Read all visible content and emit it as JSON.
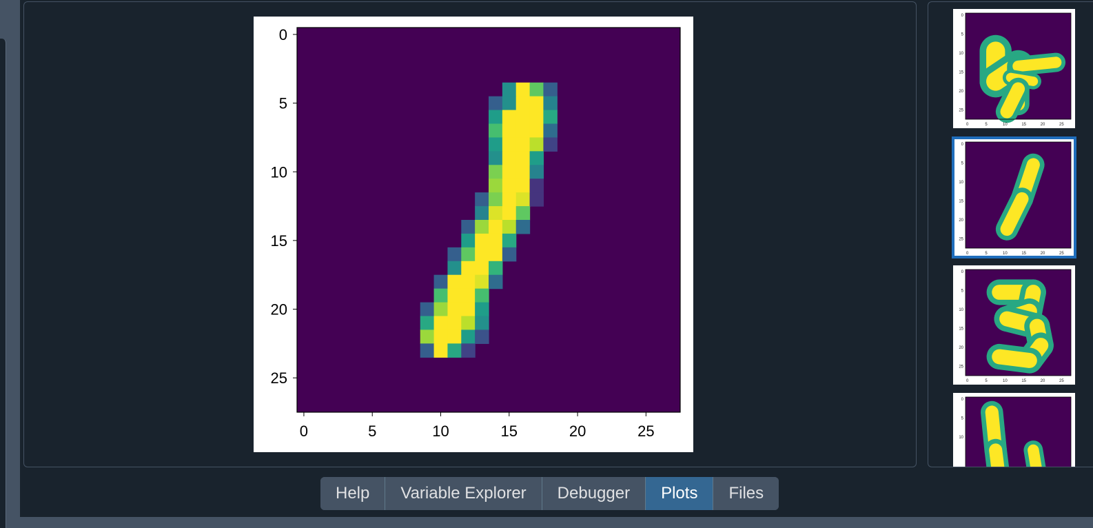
{
  "tabs": [
    {
      "label": "Help",
      "active": false
    },
    {
      "label": "Variable Explorer",
      "active": false
    },
    {
      "label": "Debugger",
      "active": false
    },
    {
      "label": "Plots",
      "active": true
    },
    {
      "label": "Files",
      "active": false
    }
  ],
  "colors": {
    "background": "#19232d",
    "panel_border": "#455364",
    "tab_active": "#346792",
    "thumb_selected": "#1f6dbb",
    "viridis_low": "#440154",
    "viridis_high": "#fde725"
  },
  "chart_data": {
    "type": "heatmap",
    "colormap": "viridis",
    "x_ticks": [
      0,
      5,
      10,
      15,
      20,
      25
    ],
    "y_ticks": [
      0,
      5,
      10,
      15,
      20,
      25
    ],
    "xlim": [
      -0.5,
      27.5
    ],
    "ylim": [
      27.5,
      -0.5
    ],
    "shape": [
      28,
      28
    ],
    "pixels": [
      [
        4,
        15,
        0.5
      ],
      [
        4,
        16,
        1.0
      ],
      [
        4,
        17,
        0.75
      ],
      [
        4,
        18,
        0.3
      ],
      [
        5,
        14,
        0.3
      ],
      [
        5,
        15,
        0.5
      ],
      [
        5,
        16,
        1.0
      ],
      [
        5,
        17,
        1.0
      ],
      [
        5,
        18,
        0.45
      ],
      [
        6,
        14,
        0.55
      ],
      [
        6,
        15,
        1.0
      ],
      [
        6,
        16,
        1.0
      ],
      [
        6,
        17,
        1.0
      ],
      [
        6,
        18,
        0.6
      ],
      [
        7,
        14,
        0.7
      ],
      [
        7,
        15,
        1.0
      ],
      [
        7,
        16,
        1.0
      ],
      [
        7,
        17,
        1.0
      ],
      [
        7,
        18,
        0.35
      ],
      [
        8,
        14,
        0.55
      ],
      [
        8,
        15,
        1.0
      ],
      [
        8,
        16,
        1.0
      ],
      [
        8,
        17,
        0.9
      ],
      [
        8,
        18,
        0.2
      ],
      [
        9,
        14,
        0.5
      ],
      [
        9,
        15,
        1.0
      ],
      [
        9,
        16,
        1.0
      ],
      [
        9,
        17,
        0.55
      ],
      [
        10,
        14,
        0.8
      ],
      [
        10,
        15,
        1.0
      ],
      [
        10,
        16,
        1.0
      ],
      [
        10,
        17,
        0.45
      ],
      [
        11,
        14,
        0.85
      ],
      [
        11,
        15,
        1.0
      ],
      [
        11,
        16,
        1.0
      ],
      [
        11,
        17,
        0.15
      ],
      [
        12,
        13,
        0.3
      ],
      [
        12,
        14,
        0.8
      ],
      [
        12,
        15,
        1.0
      ],
      [
        12,
        16,
        0.95
      ],
      [
        12,
        17,
        0.15
      ],
      [
        13,
        13,
        0.45
      ],
      [
        13,
        14,
        0.95
      ],
      [
        13,
        15,
        1.0
      ],
      [
        13,
        16,
        0.75
      ],
      [
        14,
        12,
        0.3
      ],
      [
        14,
        13,
        0.85
      ],
      [
        14,
        14,
        1.0
      ],
      [
        14,
        15,
        0.9
      ],
      [
        14,
        16,
        0.35
      ],
      [
        15,
        12,
        0.55
      ],
      [
        15,
        13,
        1.0
      ],
      [
        15,
        14,
        1.0
      ],
      [
        15,
        15,
        0.6
      ],
      [
        16,
        11,
        0.3
      ],
      [
        16,
        12,
        0.75
      ],
      [
        16,
        13,
        1.0
      ],
      [
        16,
        14,
        1.0
      ],
      [
        16,
        15,
        0.3
      ],
      [
        17,
        11,
        0.5
      ],
      [
        17,
        12,
        1.0
      ],
      [
        17,
        13,
        1.0
      ],
      [
        17,
        14,
        0.65
      ],
      [
        18,
        10,
        0.3
      ],
      [
        18,
        11,
        1.0
      ],
      [
        18,
        12,
        1.0
      ],
      [
        18,
        13,
        0.95
      ],
      [
        18,
        14,
        0.35
      ],
      [
        19,
        10,
        0.7
      ],
      [
        19,
        11,
        1.0
      ],
      [
        19,
        12,
        1.0
      ],
      [
        19,
        13,
        0.7
      ],
      [
        20,
        9,
        0.3
      ],
      [
        20,
        10,
        0.85
      ],
      [
        20,
        11,
        1.0
      ],
      [
        20,
        12,
        1.0
      ],
      [
        20,
        13,
        0.55
      ],
      [
        21,
        9,
        0.6
      ],
      [
        21,
        10,
        1.0
      ],
      [
        21,
        11,
        1.0
      ],
      [
        21,
        12,
        0.9
      ],
      [
        21,
        13,
        0.5
      ],
      [
        22,
        9,
        0.85
      ],
      [
        22,
        10,
        1.0
      ],
      [
        22,
        11,
        1.0
      ],
      [
        22,
        12,
        0.55
      ],
      [
        22,
        13,
        0.25
      ],
      [
        23,
        9,
        0.3
      ],
      [
        23,
        10,
        1.0
      ],
      [
        23,
        11,
        0.6
      ],
      [
        23,
        12,
        0.2
      ]
    ]
  },
  "thumbnails": [
    {
      "digit": "7",
      "selected": false,
      "ticks": [
        "0",
        "5",
        "10",
        "15",
        "20",
        "25"
      ]
    },
    {
      "digit": "1",
      "selected": true,
      "ticks": [
        "0",
        "5",
        "10",
        "15",
        "20",
        "25"
      ]
    },
    {
      "digit": "3",
      "selected": false,
      "ticks": [
        "0",
        "5",
        "10",
        "15",
        "20",
        "25"
      ]
    },
    {
      "digit": "4",
      "selected": false,
      "ticks": [
        "0",
        "5",
        "10"
      ]
    }
  ]
}
